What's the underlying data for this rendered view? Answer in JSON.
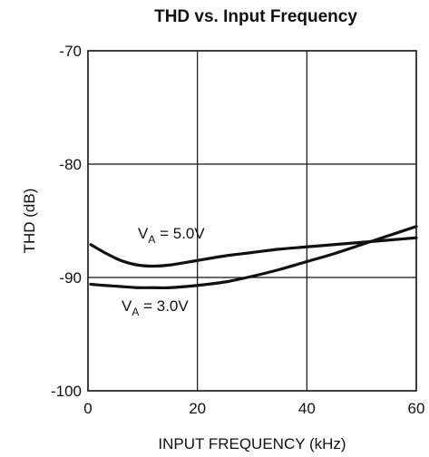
{
  "chart_data": {
    "type": "line",
    "title": "THD vs. Input Frequency",
    "xlabel": "INPUT FREQUENCY (kHz)",
    "ylabel": "THD (dB)",
    "xlim": [
      0,
      60
    ],
    "ylim": [
      -100,
      -70
    ],
    "xticks": [
      0,
      20,
      40,
      60
    ],
    "yticks": [
      -70,
      -80,
      -90,
      -100
    ],
    "grid": true,
    "series": [
      {
        "name": "VA = 5.0V",
        "label_main": "V",
        "label_sub": "A",
        "label_rest": " = 5.0V",
        "x": [
          0.5,
          3,
          6,
          9,
          12,
          15,
          20,
          25,
          30,
          35,
          40,
          45,
          50,
          55,
          60
        ],
        "y": [
          -87.1,
          -87.8,
          -88.5,
          -88.9,
          -89.0,
          -88.9,
          -88.5,
          -88.1,
          -87.8,
          -87.5,
          -87.3,
          -87.1,
          -86.9,
          -86.7,
          -86.5
        ]
      },
      {
        "name": "VA = 3.0V",
        "label_main": "V",
        "label_sub": "A",
        "label_rest": " = 3.0V",
        "x": [
          0.5,
          3,
          6,
          9,
          12,
          15,
          20,
          25,
          30,
          35,
          40,
          45,
          50,
          55,
          60
        ],
        "y": [
          -90.6,
          -90.7,
          -90.8,
          -90.9,
          -90.9,
          -90.9,
          -90.7,
          -90.4,
          -89.9,
          -89.3,
          -88.6,
          -87.9,
          -87.1,
          -86.3,
          -85.5
        ]
      }
    ]
  }
}
